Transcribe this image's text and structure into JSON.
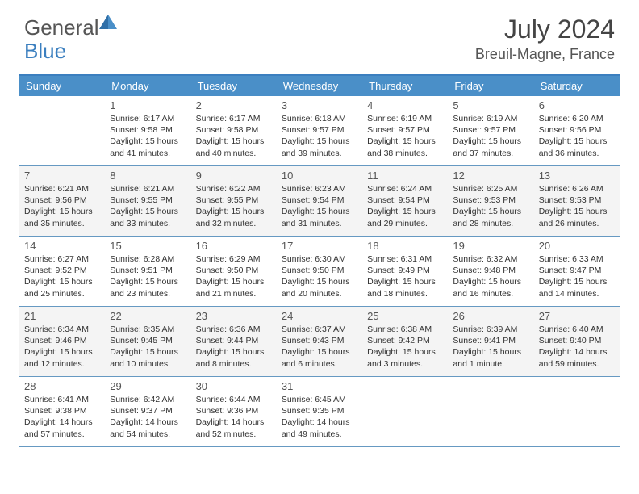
{
  "logo": {
    "text1": "General",
    "text2": "Blue"
  },
  "title": "July 2024",
  "location": "Breuil-Magne, France",
  "colors": {
    "header_bg": "#4a8fc8",
    "header_border": "#3b7fbf",
    "row_divider": "#6699c2",
    "alt_bg": "#f4f4f4",
    "text": "#333333"
  },
  "day_labels": [
    "Sunday",
    "Monday",
    "Tuesday",
    "Wednesday",
    "Thursday",
    "Friday",
    "Saturday"
  ],
  "weeks": [
    {
      "alt": false,
      "cells": [
        {
          "day": "",
          "sunrise": "",
          "sunset": "",
          "daylight": ""
        },
        {
          "day": "1",
          "sunrise": "Sunrise: 6:17 AM",
          "sunset": "Sunset: 9:58 PM",
          "daylight": "Daylight: 15 hours and 41 minutes."
        },
        {
          "day": "2",
          "sunrise": "Sunrise: 6:17 AM",
          "sunset": "Sunset: 9:58 PM",
          "daylight": "Daylight: 15 hours and 40 minutes."
        },
        {
          "day": "3",
          "sunrise": "Sunrise: 6:18 AM",
          "sunset": "Sunset: 9:57 PM",
          "daylight": "Daylight: 15 hours and 39 minutes."
        },
        {
          "day": "4",
          "sunrise": "Sunrise: 6:19 AM",
          "sunset": "Sunset: 9:57 PM",
          "daylight": "Daylight: 15 hours and 38 minutes."
        },
        {
          "day": "5",
          "sunrise": "Sunrise: 6:19 AM",
          "sunset": "Sunset: 9:57 PM",
          "daylight": "Daylight: 15 hours and 37 minutes."
        },
        {
          "day": "6",
          "sunrise": "Sunrise: 6:20 AM",
          "sunset": "Sunset: 9:56 PM",
          "daylight": "Daylight: 15 hours and 36 minutes."
        }
      ]
    },
    {
      "alt": true,
      "cells": [
        {
          "day": "7",
          "sunrise": "Sunrise: 6:21 AM",
          "sunset": "Sunset: 9:56 PM",
          "daylight": "Daylight: 15 hours and 35 minutes."
        },
        {
          "day": "8",
          "sunrise": "Sunrise: 6:21 AM",
          "sunset": "Sunset: 9:55 PM",
          "daylight": "Daylight: 15 hours and 33 minutes."
        },
        {
          "day": "9",
          "sunrise": "Sunrise: 6:22 AM",
          "sunset": "Sunset: 9:55 PM",
          "daylight": "Daylight: 15 hours and 32 minutes."
        },
        {
          "day": "10",
          "sunrise": "Sunrise: 6:23 AM",
          "sunset": "Sunset: 9:54 PM",
          "daylight": "Daylight: 15 hours and 31 minutes."
        },
        {
          "day": "11",
          "sunrise": "Sunrise: 6:24 AM",
          "sunset": "Sunset: 9:54 PM",
          "daylight": "Daylight: 15 hours and 29 minutes."
        },
        {
          "day": "12",
          "sunrise": "Sunrise: 6:25 AM",
          "sunset": "Sunset: 9:53 PM",
          "daylight": "Daylight: 15 hours and 28 minutes."
        },
        {
          "day": "13",
          "sunrise": "Sunrise: 6:26 AM",
          "sunset": "Sunset: 9:53 PM",
          "daylight": "Daylight: 15 hours and 26 minutes."
        }
      ]
    },
    {
      "alt": false,
      "cells": [
        {
          "day": "14",
          "sunrise": "Sunrise: 6:27 AM",
          "sunset": "Sunset: 9:52 PM",
          "daylight": "Daylight: 15 hours and 25 minutes."
        },
        {
          "day": "15",
          "sunrise": "Sunrise: 6:28 AM",
          "sunset": "Sunset: 9:51 PM",
          "daylight": "Daylight: 15 hours and 23 minutes."
        },
        {
          "day": "16",
          "sunrise": "Sunrise: 6:29 AM",
          "sunset": "Sunset: 9:50 PM",
          "daylight": "Daylight: 15 hours and 21 minutes."
        },
        {
          "day": "17",
          "sunrise": "Sunrise: 6:30 AM",
          "sunset": "Sunset: 9:50 PM",
          "daylight": "Daylight: 15 hours and 20 minutes."
        },
        {
          "day": "18",
          "sunrise": "Sunrise: 6:31 AM",
          "sunset": "Sunset: 9:49 PM",
          "daylight": "Daylight: 15 hours and 18 minutes."
        },
        {
          "day": "19",
          "sunrise": "Sunrise: 6:32 AM",
          "sunset": "Sunset: 9:48 PM",
          "daylight": "Daylight: 15 hours and 16 minutes."
        },
        {
          "day": "20",
          "sunrise": "Sunrise: 6:33 AM",
          "sunset": "Sunset: 9:47 PM",
          "daylight": "Daylight: 15 hours and 14 minutes."
        }
      ]
    },
    {
      "alt": true,
      "cells": [
        {
          "day": "21",
          "sunrise": "Sunrise: 6:34 AM",
          "sunset": "Sunset: 9:46 PM",
          "daylight": "Daylight: 15 hours and 12 minutes."
        },
        {
          "day": "22",
          "sunrise": "Sunrise: 6:35 AM",
          "sunset": "Sunset: 9:45 PM",
          "daylight": "Daylight: 15 hours and 10 minutes."
        },
        {
          "day": "23",
          "sunrise": "Sunrise: 6:36 AM",
          "sunset": "Sunset: 9:44 PM",
          "daylight": "Daylight: 15 hours and 8 minutes."
        },
        {
          "day": "24",
          "sunrise": "Sunrise: 6:37 AM",
          "sunset": "Sunset: 9:43 PM",
          "daylight": "Daylight: 15 hours and 6 minutes."
        },
        {
          "day": "25",
          "sunrise": "Sunrise: 6:38 AM",
          "sunset": "Sunset: 9:42 PM",
          "daylight": "Daylight: 15 hours and 3 minutes."
        },
        {
          "day": "26",
          "sunrise": "Sunrise: 6:39 AM",
          "sunset": "Sunset: 9:41 PM",
          "daylight": "Daylight: 15 hours and 1 minute."
        },
        {
          "day": "27",
          "sunrise": "Sunrise: 6:40 AM",
          "sunset": "Sunset: 9:40 PM",
          "daylight": "Daylight: 14 hours and 59 minutes."
        }
      ]
    },
    {
      "alt": false,
      "cells": [
        {
          "day": "28",
          "sunrise": "Sunrise: 6:41 AM",
          "sunset": "Sunset: 9:38 PM",
          "daylight": "Daylight: 14 hours and 57 minutes."
        },
        {
          "day": "29",
          "sunrise": "Sunrise: 6:42 AM",
          "sunset": "Sunset: 9:37 PM",
          "daylight": "Daylight: 14 hours and 54 minutes."
        },
        {
          "day": "30",
          "sunrise": "Sunrise: 6:44 AM",
          "sunset": "Sunset: 9:36 PM",
          "daylight": "Daylight: 14 hours and 52 minutes."
        },
        {
          "day": "31",
          "sunrise": "Sunrise: 6:45 AM",
          "sunset": "Sunset: 9:35 PM",
          "daylight": "Daylight: 14 hours and 49 minutes."
        },
        {
          "day": "",
          "sunrise": "",
          "sunset": "",
          "daylight": ""
        },
        {
          "day": "",
          "sunrise": "",
          "sunset": "",
          "daylight": ""
        },
        {
          "day": "",
          "sunrise": "",
          "sunset": "",
          "daylight": ""
        }
      ]
    }
  ]
}
